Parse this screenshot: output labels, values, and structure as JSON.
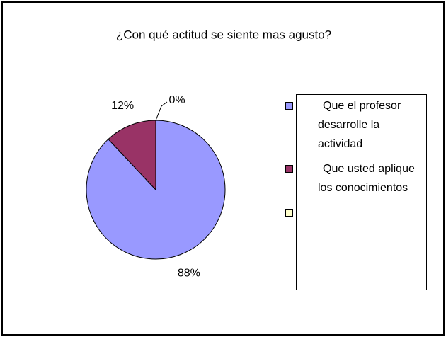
{
  "chart_data": {
    "type": "pie",
    "title": "¿Con qué actitud se siente mas agusto?",
    "categories": [
      "Que el profesor desarrolle la actividad",
      "Que usted aplique los conocimientos",
      null
    ],
    "values": [
      88,
      12,
      0
    ],
    "value_labels": [
      "88%",
      "12%",
      "0%"
    ],
    "colors": [
      "#9999ff",
      "#993366",
      "#ffffcc"
    ],
    "legend": "right"
  }
}
